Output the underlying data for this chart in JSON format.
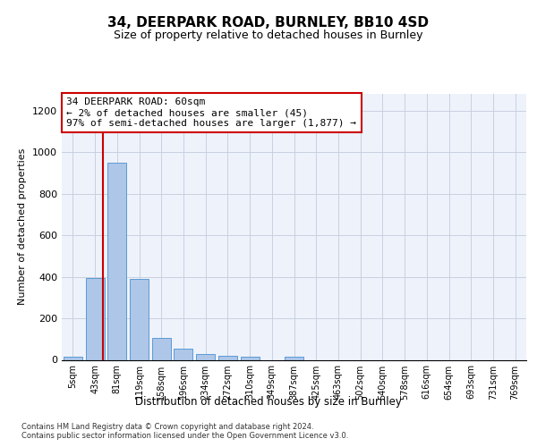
{
  "title": "34, DEERPARK ROAD, BURNLEY, BB10 4SD",
  "subtitle": "Size of property relative to detached houses in Burnley",
  "xlabel": "Distribution of detached houses by size in Burnley",
  "ylabel": "Number of detached properties",
  "bar_labels": [
    "5sqm",
    "43sqm",
    "81sqm",
    "119sqm",
    "158sqm",
    "196sqm",
    "234sqm",
    "272sqm",
    "310sqm",
    "349sqm",
    "387sqm",
    "425sqm",
    "463sqm",
    "502sqm",
    "540sqm",
    "578sqm",
    "616sqm",
    "654sqm",
    "693sqm",
    "731sqm",
    "769sqm"
  ],
  "bar_values": [
    15,
    395,
    950,
    390,
    105,
    52,
    28,
    18,
    15,
    0,
    15,
    0,
    0,
    0,
    0,
    0,
    0,
    0,
    0,
    0,
    0
  ],
  "bar_color": "#aec6e8",
  "bar_edge_color": "#5b9bd5",
  "property_line_x": 1.35,
  "property_line_color": "#cc0000",
  "annotation_line1": "34 DEERPARK ROAD: 60sqm",
  "annotation_line2": "← 2% of detached houses are smaller (45)",
  "annotation_line3": "97% of semi-detached houses are larger (1,877) →",
  "annotation_box_color": "#cc0000",
  "ylim": [
    0,
    1280
  ],
  "yticks": [
    0,
    200,
    400,
    600,
    800,
    1000,
    1200
  ],
  "footer_text": "Contains HM Land Registry data © Crown copyright and database right 2024.\nContains public sector information licensed under the Open Government Licence v3.0.",
  "bg_color": "#eef2fb",
  "grid_color": "#c8d0e0",
  "title_fontsize": 11,
  "subtitle_fontsize": 9,
  "annotation_fontsize": 8,
  "ylabel_fontsize": 8,
  "xlabel_fontsize": 8.5,
  "tick_fontsize": 7,
  "footer_fontsize": 6
}
